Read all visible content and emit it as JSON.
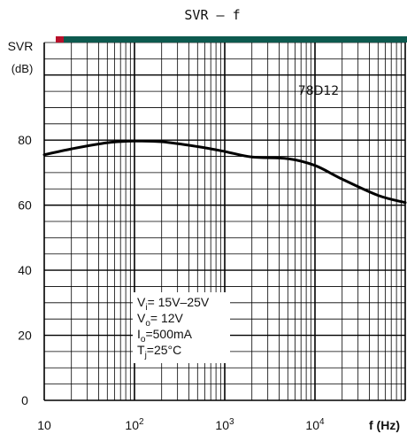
{
  "chart_data": {
    "type": "line",
    "title": "SVR — f",
    "ylabel": "SVR",
    "yunit": "(dB)",
    "xlabel": "f (Hz)",
    "x_scale": "log",
    "xlim": [
      10,
      100000
    ],
    "ylim": [
      0,
      110
    ],
    "y_ticks": [
      "0",
      "20",
      "40",
      "60",
      "80"
    ],
    "x_ticks": [
      {
        "base": "10",
        "exp": ""
      },
      {
        "base": "10",
        "exp": "2"
      },
      {
        "base": "10",
        "exp": "3"
      },
      {
        "base": "10",
        "exp": "4"
      }
    ],
    "grid": true,
    "series": [
      {
        "name": "78D12",
        "color": "#000000",
        "x": [
          10,
          20,
          50,
          100,
          200,
          500,
          1000,
          2000,
          5000,
          10000,
          20000,
          50000,
          100000
        ],
        "y": [
          75.5,
          77.3,
          79.2,
          79.7,
          79.5,
          78.0,
          76.5,
          74.8,
          74.3,
          72.2,
          68.0,
          63.0,
          60.8
        ]
      }
    ],
    "conditions": [
      {
        "sym": "V",
        "sub": "i",
        "text": "= 15V–25V"
      },
      {
        "sym": "V",
        "sub": "o",
        "text": "= 12V"
      },
      {
        "sym": "I",
        "sub": "o",
        "text": "=500mA"
      },
      {
        "sym": "T",
        "sub": "j",
        "text": "=25°C"
      }
    ]
  }
}
